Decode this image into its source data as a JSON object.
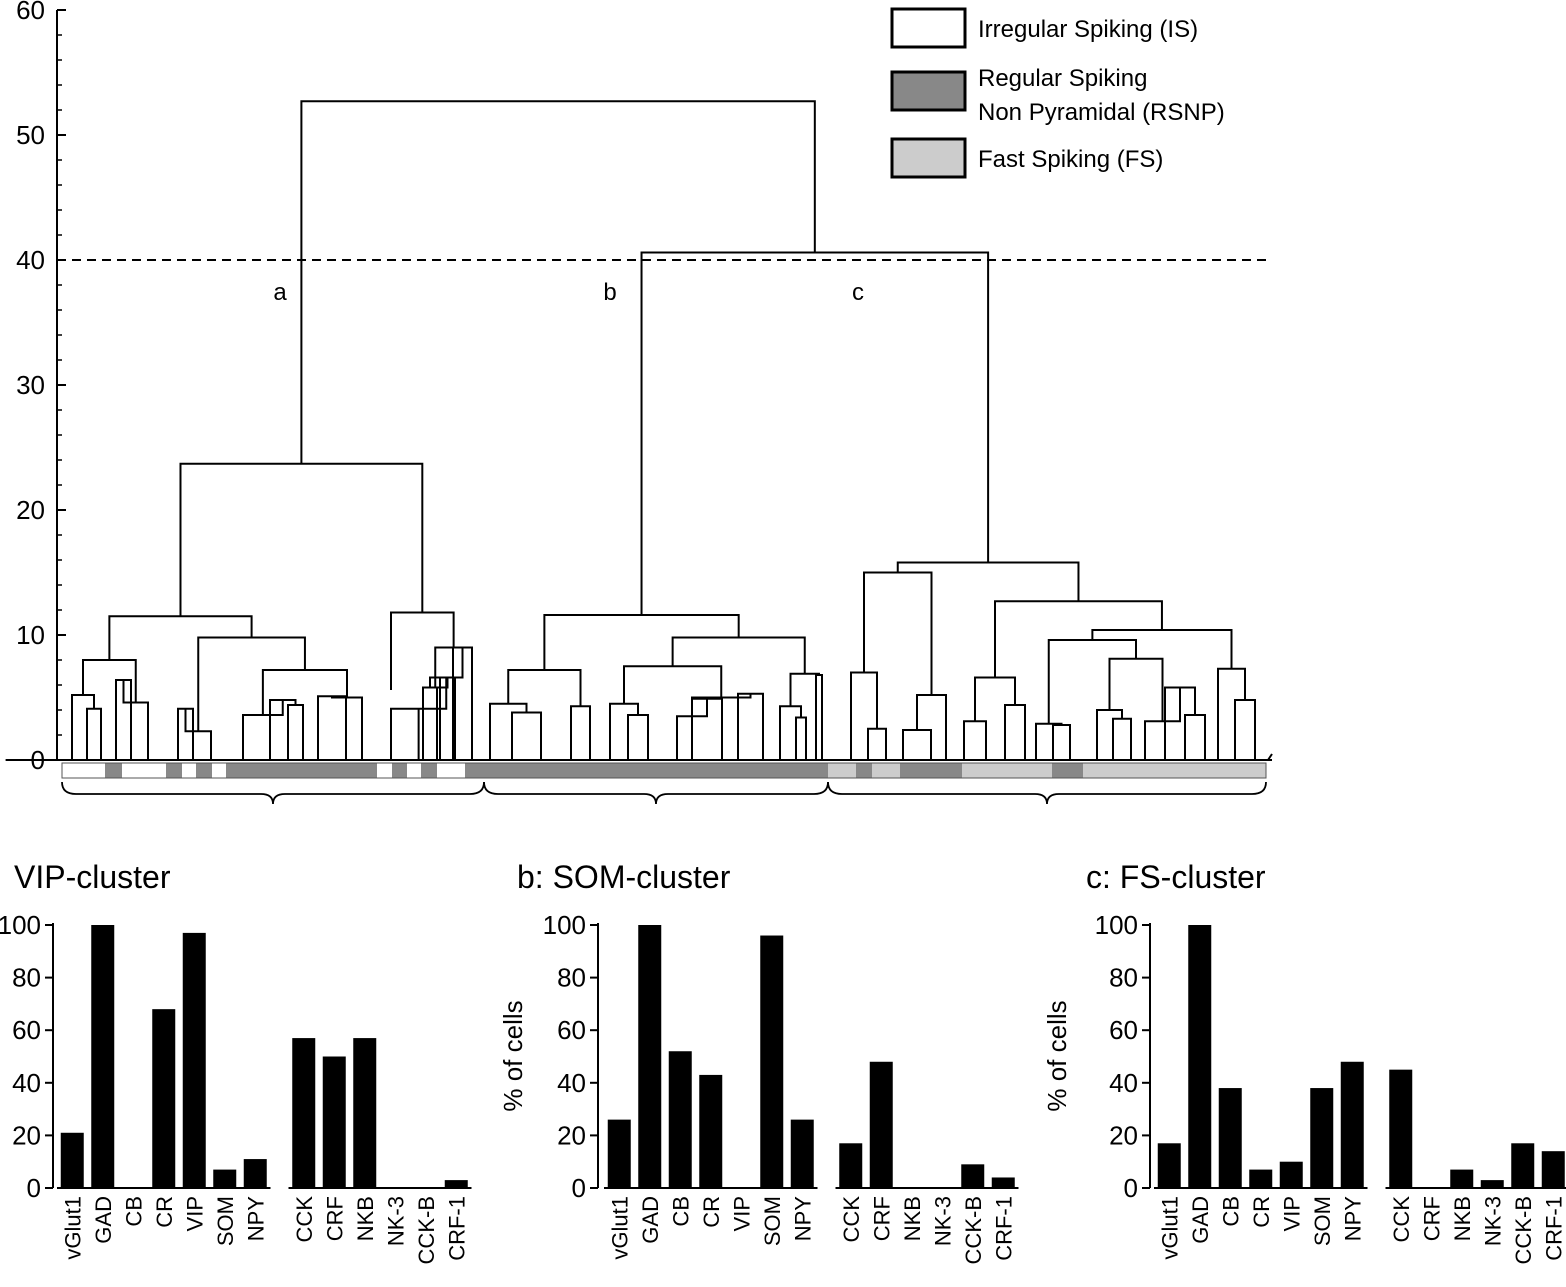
{
  "chart_data": [
    {
      "type": "dendrogram",
      "ylim": [
        0,
        60
      ],
      "yticks": [
        "0",
        "10",
        "20",
        "30",
        "40",
        "50",
        "60"
      ],
      "cut_line": 40,
      "cluster_labels": [
        "a",
        "b",
        "c"
      ],
      "legend": [
        {
          "lines": [
            "Irregular Spiking (IS)"
          ],
          "color": "#ffffff"
        },
        {
          "lines": [
            "Regular Spiking",
            "Non Pyramidal (RSNP)"
          ],
          "color": "#888888"
        },
        {
          "lines": [
            "Fast Spiking (FS)"
          ],
          "color": "#cccccc"
        }
      ],
      "merges": {
        "root": 52.7,
        "bc": 40.6,
        "a": 23.7,
        "b": 11.6,
        "c": 15.8
      }
    },
    {
      "type": "bar",
      "title": "VIP-cluster",
      "ylabel": "",
      "ylim": [
        0,
        100
      ],
      "yticks": [
        "0",
        "20",
        "40",
        "60",
        "80",
        "100"
      ],
      "groups": [
        {
          "categories": [
            "vGlut1",
            "GAD",
            "CB",
            "CR",
            "VIP",
            "SOM",
            "NPY"
          ],
          "values": [
            21,
            100,
            0,
            68,
            97,
            7,
            11
          ]
        },
        {
          "categories": [
            "CCK",
            "CRF",
            "NKB",
            "NK-3",
            "CCK-B",
            "CRF-1"
          ],
          "values": [
            57,
            50,
            57,
            0,
            0,
            3
          ]
        }
      ]
    },
    {
      "type": "bar",
      "title": "b: SOM-cluster",
      "ylabel": "% of cells",
      "ylim": [
        0,
        100
      ],
      "yticks": [
        "0",
        "20",
        "40",
        "60",
        "80",
        "100"
      ],
      "groups": [
        {
          "categories": [
            "vGlut1",
            "GAD",
            "CB",
            "CR",
            "VIP",
            "SOM",
            "NPY"
          ],
          "values": [
            26,
            100,
            52,
            43,
            0,
            96,
            26
          ]
        },
        {
          "categories": [
            "CCK",
            "CRF",
            "NKB",
            "NK-3",
            "CCK-B",
            "CRF-1"
          ],
          "values": [
            17,
            48,
            0,
            0,
            9,
            4
          ]
        }
      ]
    },
    {
      "type": "bar",
      "title": "c: FS-cluster",
      "ylabel": "% of cells",
      "ylim": [
        0,
        100
      ],
      "yticks": [
        "0",
        "20",
        "40",
        "60",
        "80",
        "100"
      ],
      "groups": [
        {
          "categories": [
            "vGlut1",
            "GAD",
            "CB",
            "CR",
            "VIP",
            "SOM",
            "NPY"
          ],
          "values": [
            17,
            100,
            38,
            7,
            10,
            38,
            48
          ]
        },
        {
          "categories": [
            "CCK",
            "CRF",
            "NKB",
            "NK-3",
            "CCK-B",
            "CRF-1"
          ],
          "values": [
            45,
            0,
            7,
            3,
            17,
            14
          ]
        }
      ]
    }
  ]
}
